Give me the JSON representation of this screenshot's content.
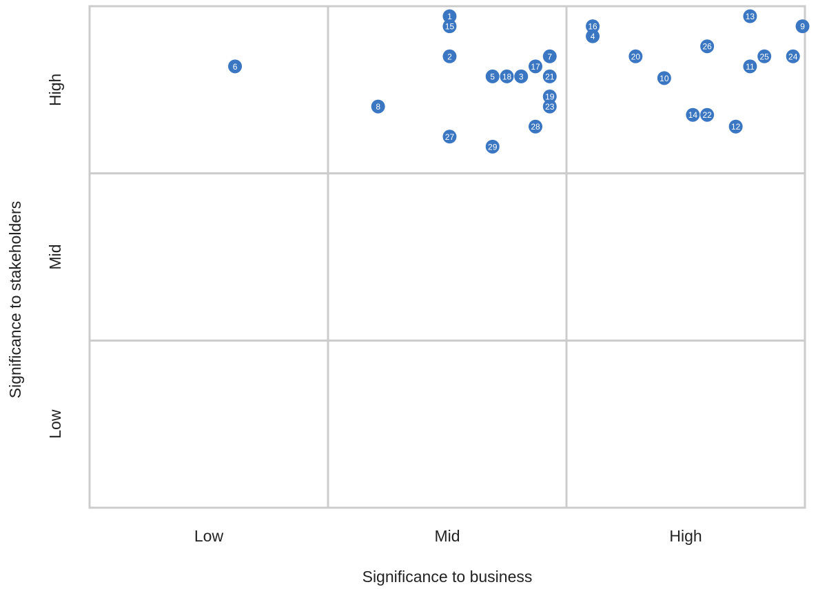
{
  "chart_data": {
    "type": "scatter",
    "title": "",
    "xlabel": "Significance to business",
    "ylabel": "Significance to stakeholders",
    "xlim": [
      0,
      3
    ],
    "ylim": [
      0,
      3
    ],
    "x_ticks": [
      "Low",
      "Mid",
      "High"
    ],
    "y_ticks": [
      "Low",
      "Mid",
      "High"
    ],
    "grid": true,
    "marker_color": "#3a76c2",
    "grid_color": "#cccccc",
    "points": [
      {
        "label": "1",
        "x": 1.51,
        "y": 2.94
      },
      {
        "label": "2",
        "x": 1.51,
        "y": 2.7
      },
      {
        "label": "3",
        "x": 1.81,
        "y": 2.58
      },
      {
        "label": "4",
        "x": 2.11,
        "y": 2.82
      },
      {
        "label": "5",
        "x": 1.69,
        "y": 2.58
      },
      {
        "label": "6",
        "x": 0.61,
        "y": 2.64
      },
      {
        "label": "7",
        "x": 1.93,
        "y": 2.7
      },
      {
        "label": "8",
        "x": 1.21,
        "y": 2.4
      },
      {
        "label": "9",
        "x": 2.99,
        "y": 2.88
      },
      {
        "label": "10",
        "x": 2.41,
        "y": 2.57
      },
      {
        "label": "11",
        "x": 2.77,
        "y": 2.64
      },
      {
        "label": "12",
        "x": 2.71,
        "y": 2.28
      },
      {
        "label": "13",
        "x": 2.77,
        "y": 2.94
      },
      {
        "label": "14",
        "x": 2.53,
        "y": 2.35
      },
      {
        "label": "15",
        "x": 1.51,
        "y": 2.88
      },
      {
        "label": "16",
        "x": 2.11,
        "y": 2.88
      },
      {
        "label": "17",
        "x": 1.87,
        "y": 2.64
      },
      {
        "label": "18",
        "x": 1.75,
        "y": 2.58
      },
      {
        "label": "19",
        "x": 1.93,
        "y": 2.46
      },
      {
        "label": "20",
        "x": 2.29,
        "y": 2.7
      },
      {
        "label": "21",
        "x": 1.93,
        "y": 2.58
      },
      {
        "label": "22",
        "x": 2.59,
        "y": 2.35
      },
      {
        "label": "23",
        "x": 1.93,
        "y": 2.4
      },
      {
        "label": "24",
        "x": 2.95,
        "y": 2.7
      },
      {
        "label": "25",
        "x": 2.83,
        "y": 2.7
      },
      {
        "label": "26",
        "x": 2.59,
        "y": 2.76
      },
      {
        "label": "27",
        "x": 1.51,
        "y": 2.22
      },
      {
        "label": "28",
        "x": 1.87,
        "y": 2.28
      },
      {
        "label": "29",
        "x": 1.69,
        "y": 2.16
      }
    ]
  }
}
